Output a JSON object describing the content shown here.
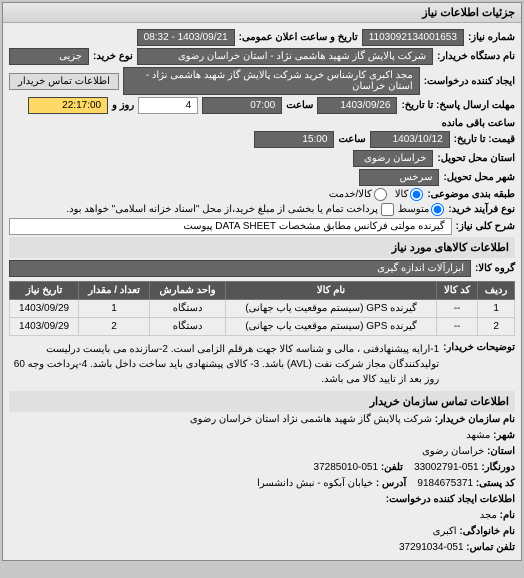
{
  "panel_title": "جزئیات اطلاعات نیاز",
  "fields": {
    "shomare_niaz_label": "شماره نیاز:",
    "shomare_niaz_value": "1103092134001653",
    "tarikh_elan_label": "تاریخ و ساعت اعلان عمومی:",
    "tarikh_elan_value": "1403/09/21 - 08:32",
    "dastgah_label": "نام دستگاه خریدار:",
    "dastgah_value": "شرکت پالایش گاز شهید هاشمی نژاد - استان خراسان رضوی",
    "noe_label": "نوع خرید:",
    "noe_value": "جزیی",
    "ijad_label": "ایجاد کننده درخواست:",
    "ijad_value": "مجد اکبری کارشناس خرید شرکت پالایش گاز شهید هاشمی نژاد - استان خراسان",
    "tamas_btn": "اطلاعات تماس خریدار",
    "mohlat_label": "مهلت ارسال پاسخ: تا تاریخ:",
    "mohlat_date": "1403/09/26",
    "saat_label": "ساعت",
    "mohlat_saat": "07:00",
    "rooz_label": "روز و",
    "rooz_value": "4",
    "baghi_label": "ساعت باقی مانده",
    "baghi_value": "22:17:00",
    "gheymat_label": "قیمت: تا تاریخ:",
    "gheymat_date": "1403/10/12",
    "gheymat_saat": "15:00",
    "mahal_label": "استان محل تحویل:",
    "mahal_value": "خراسان رضوی",
    "shahr_label": "شهر محل تحویل:",
    "shahr_value": "سرخس",
    "tabaghe_label": "طبقه بندی موضوعی:",
    "radio_kala": "کالا",
    "radio_khedmat": "کالا/خدمت",
    "noe_kharid_label": "نوع فرآیند خرید:",
    "radio_motavaset": "متوسط",
    "pardakht_text": "پرداخت تمام یا بخشی از مبلغ خرید،از محل \"اسناد خزانه اسلامی\" خواهد بود.",
    "sharh_label": "شرح کلی نیاز:",
    "sharh_value": "گیرنده مولتی فرکانس مطابق مشخصات DATA SHEET پیوست",
    "etelaat_kala_title": "اطلاعات کالاهای مورد نیاز",
    "goruh_label": "گروه کالا:",
    "goruh_value": "ابزارآلات اندازه گیری"
  },
  "table": {
    "headers": [
      "ردیف",
      "کد کالا",
      "نام کالا",
      "واحد شمارش",
      "تعداد / مقدار",
      "تاریخ نیاز"
    ],
    "rows": [
      [
        "1",
        "--",
        "گیرنده GPS (سیستم موقعیت یاب جهانی)",
        "دستگاه",
        "1",
        "1403/09/29"
      ],
      [
        "2",
        "--",
        "گیرنده GPS (سیستم موقعیت یاب جهانی)",
        "دستگاه",
        "2",
        "1403/09/29"
      ]
    ]
  },
  "tozihaat_label": "توضیحات خریدار:",
  "tozihaat_value": "1-ارایه پیشنهادفنی ، مالی و شناسه کالا جهت هرقلم الزامی است. 2-سازنده می بایست درلیست تولیدکنندگان مجاز شرکت نفت (AVL) باشد. 3- کالای پیشنهادی باید ساخت داخل باشد. 4-پرداخت وجه 60 روز بعد از تایید کالا می باشد.",
  "contact_title": "اطلاعات تماس سازمان خریدار",
  "contact": {
    "nam_label": "نام سازمان خریدار:",
    "nam_value": "شرکت پالایش گاز شهید هاشمی نژاد استان خراسان رضوی",
    "shahr_label": "شهر:",
    "shahr_value": "مشهد",
    "ostan_label": "استان:",
    "ostan_value": "خراسان رضوی",
    "dornegar_label": "دورنگار:",
    "dornegar_value": "051-33002791",
    "telefon_label": "تلفن:",
    "telefon_value": "051-37285010",
    "codeposti_label": "کد پستی:",
    "codeposti_value": "9184675371",
    "address_label": "آدرس :",
    "address_value": "خیابان آبکوه - نبش دانشسرا",
    "ijad_title": "اطلاعات ایجاد کننده درخواست:",
    "nam2_label": "نام:",
    "nam2_value": "مجد",
    "fam_label": "نام خانوادگی:",
    "fam_value": "اکبری",
    "tel2_label": "تلفن تماس:",
    "tel2_value": "051-37291034"
  },
  "colors": {
    "bg": "#c8c8c8",
    "panel_bg": "#ededed",
    "field_bg": "#666666",
    "field_fg": "#ffffff",
    "header_bg": "#555555",
    "yellow": "#ffd966"
  }
}
